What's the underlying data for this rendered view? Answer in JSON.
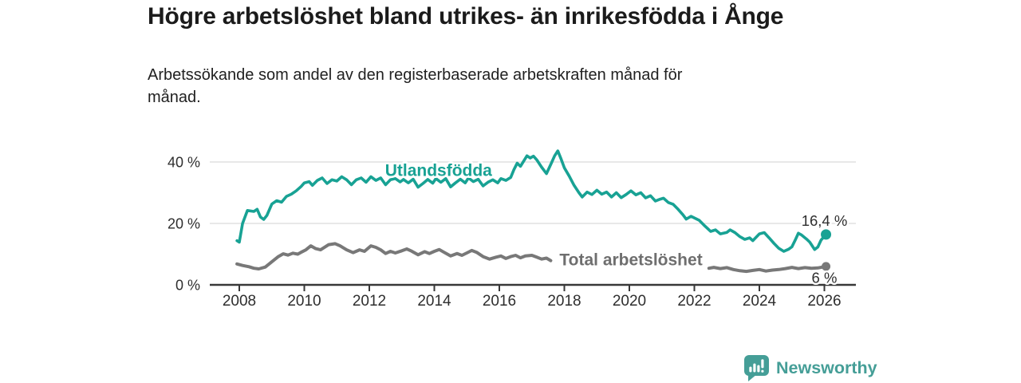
{
  "header": {
    "title": "Högre arbetslöshet bland utrikes- än inrikesfödda i Ånge",
    "subtitle": "Arbetssökande som andel av den registerbaserade arbetskraften månad för\nmånad."
  },
  "chart_data": {
    "type": "line",
    "title": "Högre arbetslöshet bland utrikes- än inrikesfödda i Ånge",
    "xlabel": "",
    "ylabel": "Arbetssökande som andel av den registerbaserade arbetskraften",
    "grid": "horizontal",
    "legend_position": "inline-labels",
    "axis_color": "#383838",
    "grid_color": "#dadada",
    "tick_label_color": "#2e2e2e",
    "end_label_color": "#2e2e2e",
    "x_axis": {
      "min": 2007.1,
      "max": 2027.0,
      "ticks": [
        2008,
        2010,
        2012,
        2014,
        2016,
        2018,
        2020,
        2022,
        2024,
        2026
      ]
    },
    "y_axis": {
      "min": 0,
      "max": 48,
      "ticks": [
        {
          "value": 0,
          "label": "0 %"
        },
        {
          "value": 20,
          "label": "20 %"
        },
        {
          "value": 40,
          "label": "40 %"
        }
      ]
    },
    "series": [
      {
        "id": "utlandsfodda",
        "name": "Utlandsfödda",
        "color": "#18a294",
        "label_color": "#18a294",
        "line_width": 3.6,
        "end_dot_radius": 6.5,
        "label": {
          "text": "Utlandsfödda",
          "x": 2014.13,
          "y": 37.4
        },
        "end_label": {
          "text": "16,4 %",
          "x": 2026.0,
          "y": 20.9
        },
        "end_value": 16.4,
        "segments": [
          [
            [
              2007.93,
              14.4
            ],
            [
              2008.0,
              13.9
            ],
            [
              2008.1,
              20.0
            ],
            [
              2008.25,
              24.2
            ],
            [
              2008.45,
              23.9
            ],
            [
              2008.55,
              24.6
            ],
            [
              2008.65,
              22.1
            ],
            [
              2008.75,
              21.3
            ],
            [
              2008.85,
              22.6
            ],
            [
              2009.0,
              26.3
            ],
            [
              2009.15,
              27.4
            ],
            [
              2009.3,
              26.9
            ],
            [
              2009.45,
              28.8
            ],
            [
              2009.6,
              29.5
            ],
            [
              2009.75,
              30.6
            ],
            [
              2009.9,
              32.0
            ],
            [
              2010.0,
              33.2
            ],
            [
              2010.15,
              33.6
            ],
            [
              2010.25,
              32.4
            ],
            [
              2010.4,
              34.0
            ],
            [
              2010.55,
              34.8
            ],
            [
              2010.7,
              33.0
            ],
            [
              2010.85,
              34.2
            ],
            [
              2011.0,
              33.8
            ],
            [
              2011.15,
              35.2
            ],
            [
              2011.3,
              34.2
            ],
            [
              2011.45,
              32.6
            ],
            [
              2011.6,
              34.2
            ],
            [
              2011.75,
              34.8
            ],
            [
              2011.9,
              33.4
            ],
            [
              2012.05,
              35.2
            ],
            [
              2012.2,
              34.0
            ],
            [
              2012.35,
              34.8
            ],
            [
              2012.5,
              32.6
            ],
            [
              2012.65,
              34.2
            ],
            [
              2012.8,
              34.6
            ],
            [
              2012.95,
              33.5
            ],
            [
              2013.05,
              34.3
            ],
            [
              2013.2,
              33.2
            ],
            [
              2013.35,
              34.4
            ],
            [
              2013.5,
              31.8
            ],
            [
              2013.65,
              33.0
            ],
            [
              2013.8,
              34.3
            ],
            [
              2013.95,
              33.1
            ],
            [
              2014.05,
              34.6
            ],
            [
              2014.2,
              33.4
            ],
            [
              2014.35,
              34.6
            ],
            [
              2014.5,
              31.9
            ],
            [
              2014.65,
              33.2
            ],
            [
              2014.8,
              34.4
            ],
            [
              2014.95,
              33.2
            ],
            [
              2015.05,
              34.8
            ],
            [
              2015.2,
              33.6
            ],
            [
              2015.35,
              34.4
            ],
            [
              2015.5,
              32.2
            ],
            [
              2015.65,
              33.4
            ],
            [
              2015.8,
              34.2
            ],
            [
              2015.95,
              33.2
            ],
            [
              2016.05,
              34.6
            ],
            [
              2016.2,
              34.0
            ],
            [
              2016.35,
              35.0
            ],
            [
              2016.45,
              37.5
            ],
            [
              2016.55,
              39.6
            ],
            [
              2016.65,
              38.6
            ],
            [
              2016.85,
              42.0
            ],
            [
              2016.95,
              41.3
            ],
            [
              2017.05,
              41.9
            ],
            [
              2017.15,
              40.7
            ],
            [
              2017.3,
              38.3
            ],
            [
              2017.45,
              36.2
            ],
            [
              2017.6,
              39.6
            ],
            [
              2017.7,
              42.0
            ],
            [
              2017.8,
              43.6
            ],
            [
              2017.9,
              41.0
            ],
            [
              2018.0,
              38.1
            ],
            [
              2018.15,
              35.4
            ],
            [
              2018.3,
              32.4
            ],
            [
              2018.45,
              30.0
            ],
            [
              2018.55,
              28.6
            ],
            [
              2018.7,
              30.2
            ],
            [
              2018.85,
              29.4
            ],
            [
              2019.0,
              30.8
            ],
            [
              2019.15,
              29.5
            ],
            [
              2019.3,
              30.2
            ],
            [
              2019.45,
              28.6
            ],
            [
              2019.6,
              30.0
            ],
            [
              2019.75,
              28.4
            ],
            [
              2019.9,
              29.4
            ],
            [
              2020.05,
              30.6
            ],
            [
              2020.2,
              29.3
            ],
            [
              2020.35,
              30.0
            ],
            [
              2020.5,
              28.3
            ],
            [
              2020.65,
              29.0
            ],
            [
              2020.8,
              27.3
            ],
            [
              2020.95,
              27.9
            ],
            [
              2021.05,
              28.2
            ],
            [
              2021.2,
              26.8
            ],
            [
              2021.35,
              26.2
            ],
            [
              2021.5,
              24.6
            ],
            [
              2021.65,
              22.8
            ],
            [
              2021.75,
              21.4
            ],
            [
              2021.9,
              22.3
            ],
            [
              2022.0,
              21.8
            ],
            [
              2022.15,
              21.0
            ],
            [
              2022.3,
              19.4
            ],
            [
              2022.5,
              17.4
            ],
            [
              2022.65,
              17.9
            ],
            [
              2022.8,
              16.6
            ],
            [
              2023.0,
              17.1
            ],
            [
              2023.1,
              17.9
            ],
            [
              2023.25,
              17.0
            ],
            [
              2023.4,
              15.7
            ],
            [
              2023.55,
              14.8
            ],
            [
              2023.7,
              15.3
            ],
            [
              2023.8,
              14.4
            ],
            [
              2024.0,
              16.6
            ],
            [
              2024.15,
              17.0
            ],
            [
              2024.3,
              15.3
            ],
            [
              2024.45,
              13.5
            ],
            [
              2024.6,
              11.9
            ],
            [
              2024.75,
              10.9
            ],
            [
              2024.9,
              11.6
            ],
            [
              2025.0,
              12.4
            ],
            [
              2025.1,
              14.5
            ],
            [
              2025.2,
              16.8
            ],
            [
              2025.3,
              16.2
            ],
            [
              2025.45,
              14.9
            ],
            [
              2025.55,
              13.9
            ],
            [
              2025.7,
              11.5
            ],
            [
              2025.8,
              12.3
            ],
            [
              2025.9,
              14.6
            ],
            [
              2026.05,
              16.4
            ]
          ]
        ]
      },
      {
        "id": "total",
        "name": "Total arbetslöshet",
        "color": "#787878",
        "label_color": "#6e6e6e",
        "line_width": 4,
        "end_dot_radius": 5.5,
        "label": {
          "text": "Total arbetslöshet",
          "x": 2020.05,
          "y": 8.3
        },
        "end_label": {
          "text": "6 %",
          "x": 2026.0,
          "y": 2.4
        },
        "end_value": 6.0,
        "segments": [
          [
            [
              2007.93,
              6.8
            ],
            [
              2008.1,
              6.3
            ],
            [
              2008.3,
              5.9
            ],
            [
              2008.45,
              5.4
            ],
            [
              2008.6,
              5.2
            ],
            [
              2008.8,
              5.8
            ],
            [
              2009.0,
              7.5
            ],
            [
              2009.2,
              9.2
            ],
            [
              2009.35,
              10.1
            ],
            [
              2009.5,
              9.7
            ],
            [
              2009.65,
              10.3
            ],
            [
              2009.8,
              10.0
            ],
            [
              2009.9,
              10.6
            ],
            [
              2010.05,
              11.4
            ],
            [
              2010.2,
              12.7
            ],
            [
              2010.35,
              11.8
            ],
            [
              2010.5,
              11.4
            ],
            [
              2010.75,
              13.1
            ],
            [
              2010.95,
              13.4
            ],
            [
              2011.1,
              12.7
            ],
            [
              2011.3,
              11.4
            ],
            [
              2011.5,
              10.5
            ],
            [
              2011.7,
              11.4
            ],
            [
              2011.85,
              10.9
            ],
            [
              2012.05,
              12.7
            ],
            [
              2012.2,
              12.2
            ],
            [
              2012.35,
              11.4
            ],
            [
              2012.5,
              10.2
            ],
            [
              2012.65,
              10.9
            ],
            [
              2012.8,
              10.4
            ],
            [
              2013.0,
              11.1
            ],
            [
              2013.15,
              11.7
            ],
            [
              2013.3,
              11.0
            ],
            [
              2013.5,
              9.8
            ],
            [
              2013.7,
              10.8
            ],
            [
              2013.85,
              10.2
            ],
            [
              2014.0,
              10.9
            ],
            [
              2014.15,
              11.5
            ],
            [
              2014.3,
              10.6
            ],
            [
              2014.5,
              9.4
            ],
            [
              2014.7,
              10.2
            ],
            [
              2014.85,
              9.6
            ],
            [
              2015.0,
              10.4
            ],
            [
              2015.15,
              11.2
            ],
            [
              2015.3,
              10.6
            ],
            [
              2015.5,
              9.2
            ],
            [
              2015.7,
              8.4
            ],
            [
              2015.9,
              9.0
            ],
            [
              2016.05,
              9.4
            ],
            [
              2016.2,
              8.6
            ],
            [
              2016.35,
              9.2
            ],
            [
              2016.5,
              9.6
            ],
            [
              2016.65,
              8.8
            ],
            [
              2016.8,
              9.4
            ],
            [
              2017.0,
              9.6
            ],
            [
              2017.15,
              9.0
            ],
            [
              2017.3,
              8.4
            ],
            [
              2017.45,
              8.7
            ],
            [
              2017.58,
              7.9
            ]
          ],
          [
            [
              2022.45,
              5.4
            ],
            [
              2022.6,
              5.7
            ],
            [
              2022.8,
              5.3
            ],
            [
              2023.0,
              5.6
            ],
            [
              2023.2,
              5.0
            ],
            [
              2023.4,
              4.6
            ],
            [
              2023.6,
              4.4
            ],
            [
              2023.8,
              4.7
            ],
            [
              2024.0,
              5.0
            ],
            [
              2024.2,
              4.5
            ],
            [
              2024.4,
              4.8
            ],
            [
              2024.6,
              5.0
            ],
            [
              2024.8,
              5.3
            ],
            [
              2025.0,
              5.7
            ],
            [
              2025.2,
              5.3
            ],
            [
              2025.4,
              5.6
            ],
            [
              2025.6,
              5.4
            ],
            [
              2025.8,
              5.5
            ],
            [
              2026.05,
              6.0
            ]
          ]
        ]
      }
    ]
  },
  "footer": {
    "brand": "Newsworthy",
    "brand_color": "#459e97"
  }
}
